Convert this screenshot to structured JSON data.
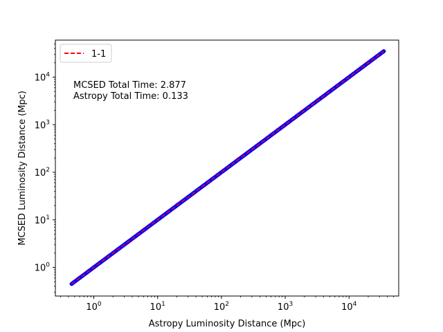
{
  "chart_data": {
    "type": "scatter",
    "title": "",
    "xlabel": "Astropy Luminosity Distance (Mpc)",
    "ylabel": "MCSED Luminosity Distance (Mpc)",
    "xscale": "log",
    "yscale": "log",
    "xlim": [
      0.25,
      60000
    ],
    "ylim": [
      0.25,
      60000
    ],
    "xticks": [
      {
        "value": 1,
        "base": "10",
        "exp": "0"
      },
      {
        "value": 10,
        "base": "10",
        "exp": "1"
      },
      {
        "value": 100,
        "base": "10",
        "exp": "2"
      },
      {
        "value": 1000,
        "base": "10",
        "exp": "3"
      },
      {
        "value": 10000,
        "base": "10",
        "exp": "4"
      }
    ],
    "yticks": [
      {
        "value": 1,
        "base": "10",
        "exp": "0"
      },
      {
        "value": 10,
        "base": "10",
        "exp": "1"
      },
      {
        "value": 100,
        "base": "10",
        "exp": "2"
      },
      {
        "value": 1000,
        "base": "10",
        "exp": "3"
      },
      {
        "value": 10000,
        "base": "10",
        "exp": "4"
      }
    ],
    "grid": false,
    "legend": {
      "position": "top-left",
      "entries": [
        "1-1"
      ]
    },
    "series": [
      {
        "kind": "scatter",
        "color": "#0000ff",
        "x_range": [
          0.45,
          35000
        ],
        "relation": "y = x"
      },
      {
        "name": "1-1",
        "kind": "line",
        "style": "dashed",
        "color": "#ff0000",
        "x": [
          0.45,
          35000
        ],
        "y": [
          0.45,
          35000
        ]
      }
    ],
    "annotations": [
      "MCSED Total Time: 2.877",
      "Astropy Total Time: 0.133"
    ]
  }
}
